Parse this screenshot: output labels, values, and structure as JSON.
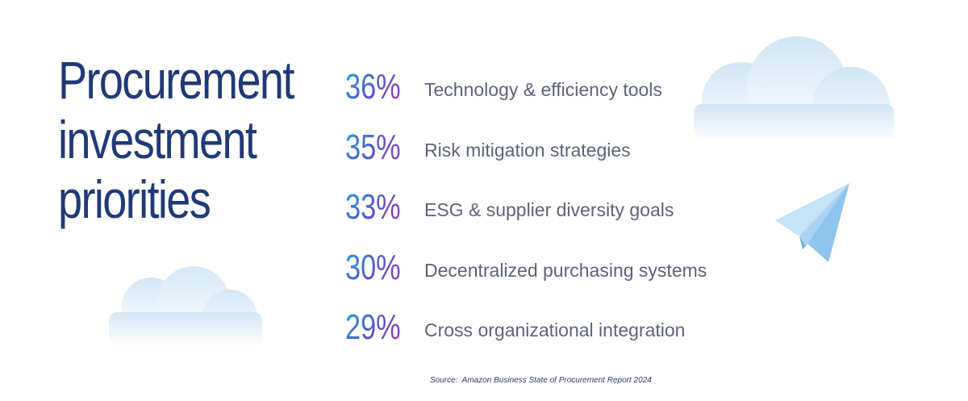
{
  "title_lines": [
    "Procurement",
    "investment",
    "priorities"
  ],
  "chart_data": {
    "type": "bar",
    "categories": [
      "Technology & efficiency tools",
      "Risk mitigation strategies",
      "ESG & supplier diversity goals",
      "Decentralized purchasing systems",
      "Cross organizational integration"
    ],
    "values": [
      36,
      35,
      33,
      30,
      29
    ],
    "value_labels": [
      "36%",
      "35%",
      "33%",
      "30%",
      "29%"
    ],
    "title": "Procurement investment priorities",
    "xlabel": "",
    "ylabel": ""
  },
  "source": "Source:  Amazon Business State of Procurement Report 2024",
  "colors": {
    "title": "#1f3a78",
    "label": "#5c6378",
    "gradient_start": "#1aa6df",
    "gradient_end": "#9b3bbf",
    "cloud": "#d6e9f6",
    "plane": "#a9d3f2"
  }
}
